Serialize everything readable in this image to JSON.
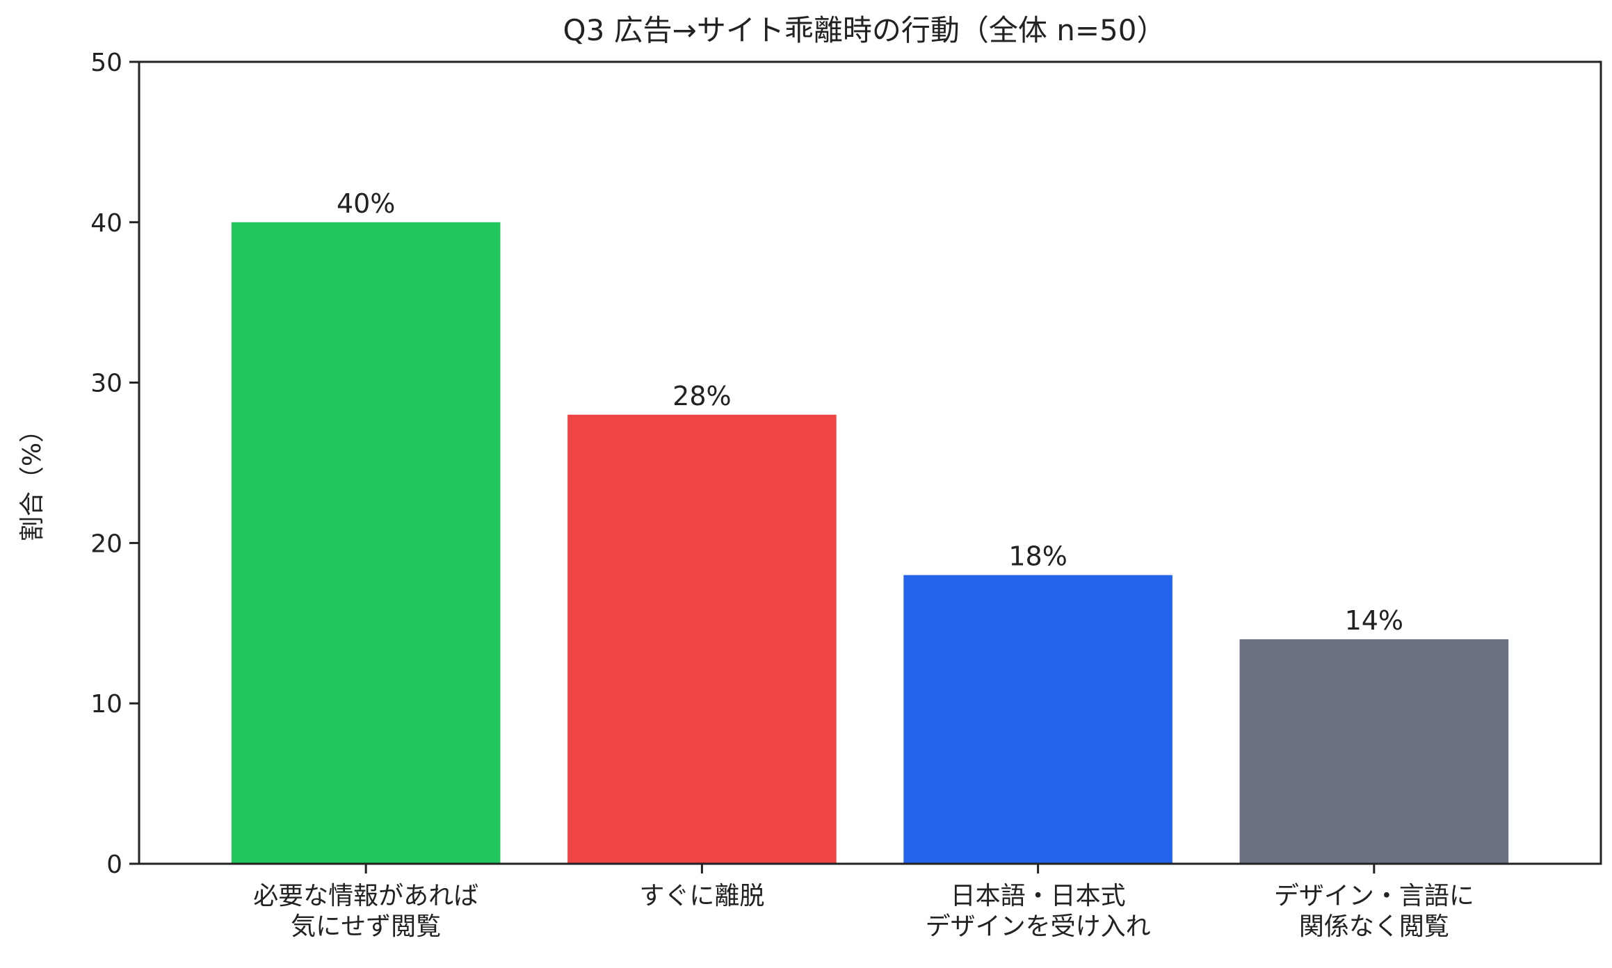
{
  "chart_data": {
    "type": "bar",
    "title": "Q3 広告→サイト乖離時の行動（全体 n=50）",
    "xlabel": "",
    "ylabel": "割合（%）",
    "ylim": [
      0,
      50
    ],
    "yticks": [
      "0",
      "10",
      "20",
      "30",
      "40",
      "50"
    ],
    "grid": false,
    "legend": "none",
    "categories": [
      [
        "必要な情報があれば",
        "気にせず閲覧"
      ],
      [
        "すぐに離脱"
      ],
      [
        "日本語・日本式",
        "デザインを受け入れ"
      ],
      [
        "デザイン・言語に",
        "関係なく閲覧"
      ]
    ],
    "values": [
      40,
      28,
      18,
      14
    ],
    "data_labels": [
      "40%",
      "28%",
      "18%",
      "14%"
    ],
    "colors": [
      "#22c55e",
      "#ef4444",
      "#2563eb",
      "#6b7280"
    ]
  }
}
